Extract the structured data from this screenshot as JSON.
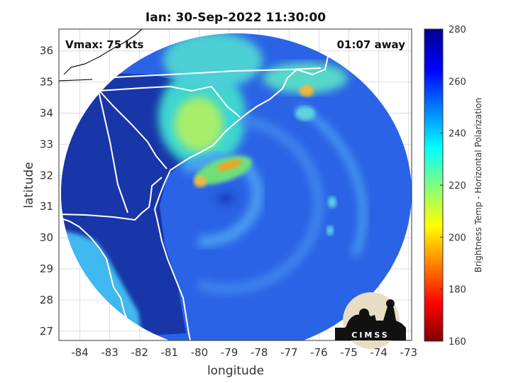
{
  "chart_data": {
    "type": "heatmap",
    "title": "Ian: 30-Sep-2022 11:30:00",
    "xlabel": "longitude",
    "ylabel": "latitude",
    "xlim": [
      -84.7,
      -72.9
    ],
    "ylim": [
      26.7,
      36.7
    ],
    "xticks": [
      "-84",
      "-83",
      "-82",
      "-81",
      "-80",
      "-79",
      "-78",
      "-77",
      "-76",
      "-75",
      "-74",
      "-73"
    ],
    "yticks": [
      "27",
      "28",
      "29",
      "30",
      "31",
      "32",
      "33",
      "34",
      "35",
      "36"
    ],
    "grid": true,
    "annotations": {
      "vmax": "Vmax: 75 kts",
      "time_offset": "01:07 away"
    },
    "colorbar": {
      "label": "Brightness Temp - Horizontal Polarization",
      "range": [
        160,
        280
      ],
      "ticks": [
        "160",
        "180",
        "200",
        "220",
        "240",
        "260",
        "280"
      ],
      "colormap": "jet"
    },
    "storm_center": {
      "lon": -79.0,
      "lat": 31.2
    },
    "logo": "CIMSS"
  },
  "colors": {
    "land": "#1836a8",
    "ocean_base": "#2a63e6",
    "coastline": "#ffffff"
  }
}
